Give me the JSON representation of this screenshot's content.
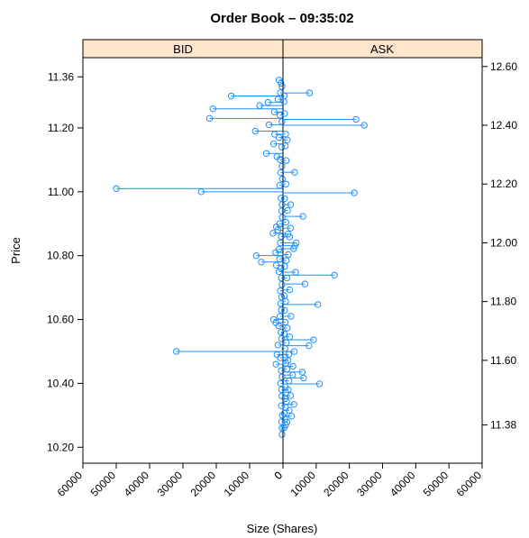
{
  "chart_data": {
    "type": "scatter",
    "style": "stem",
    "title": "Order Book – 09:35:02",
    "xlabel": "Size (Shares)",
    "ylabel": "Price",
    "xlim": [
      0,
      60000
    ],
    "x_ticks": [
      0,
      10000,
      20000,
      30000,
      40000,
      50000,
      60000
    ],
    "bid_ylim": [
      10.15,
      11.42
    ],
    "ask_ylim": [
      11.25,
      12.63
    ],
    "bid_y_ticks": [
      "10.20",
      "10.40",
      "10.60",
      "10.80",
      "11.00",
      "11.20",
      "11.36"
    ],
    "ask_y_ticks": [
      "11.38",
      "11.60",
      "11.80",
      "12.00",
      "12.20",
      "12.40",
      "12.60"
    ],
    "marker_color": "#1e90ff",
    "strip_color": "#ffe5cc",
    "grid": false,
    "panels": [
      {
        "name": "BID",
        "points": [
          {
            "price": 11.35,
            "size": 1200
          },
          {
            "price": 11.34,
            "size": 600
          },
          {
            "price": 11.33,
            "size": 300
          },
          {
            "price": 11.31,
            "size": 800
          },
          {
            "price": 11.3,
            "size": 15500
          },
          {
            "price": 11.29,
            "size": 1500
          },
          {
            "price": 11.28,
            "size": 4500
          },
          {
            "price": 11.27,
            "size": 7000
          },
          {
            "price": 11.26,
            "size": 21000
          },
          {
            "price": 11.25,
            "size": 2600
          },
          {
            "price": 11.24,
            "size": 900
          },
          {
            "price": 11.23,
            "size": 22000
          },
          {
            "price": 11.22,
            "size": 300
          },
          {
            "price": 11.21,
            "size": 4200
          },
          {
            "price": 11.19,
            "size": 8300
          },
          {
            "price": 11.18,
            "size": 2500
          },
          {
            "price": 11.17,
            "size": 1200
          },
          {
            "price": 11.15,
            "size": 2800
          },
          {
            "price": 11.14,
            "size": 400
          },
          {
            "price": 11.12,
            "size": 5000
          },
          {
            "price": 11.11,
            "size": 1800
          },
          {
            "price": 11.1,
            "size": 900
          },
          {
            "price": 11.08,
            "size": 300
          },
          {
            "price": 11.06,
            "size": 700
          },
          {
            "price": 11.04,
            "size": 200
          },
          {
            "price": 11.02,
            "size": 1000
          },
          {
            "price": 11.01,
            "size": 50000
          },
          {
            "price": 11.0,
            "size": 24500
          },
          {
            "price": 10.98,
            "size": 600
          },
          {
            "price": 10.96,
            "size": 300
          },
          {
            "price": 10.94,
            "size": 400
          },
          {
            "price": 10.92,
            "size": 200
          },
          {
            "price": 10.9,
            "size": 1000
          },
          {
            "price": 10.89,
            "size": 2000
          },
          {
            "price": 10.88,
            "size": 1500
          },
          {
            "price": 10.87,
            "size": 3000
          },
          {
            "price": 10.86,
            "size": 500
          },
          {
            "price": 10.84,
            "size": 800
          },
          {
            "price": 10.82,
            "size": 1200
          },
          {
            "price": 10.81,
            "size": 2200
          },
          {
            "price": 10.8,
            "size": 8000
          },
          {
            "price": 10.79,
            "size": 1000
          },
          {
            "price": 10.78,
            "size": 6500
          },
          {
            "price": 10.77,
            "size": 2000
          },
          {
            "price": 10.76,
            "size": 600
          },
          {
            "price": 10.75,
            "size": 1200
          },
          {
            "price": 10.73,
            "size": 500
          },
          {
            "price": 10.71,
            "size": 300
          },
          {
            "price": 10.69,
            "size": 800
          },
          {
            "price": 10.67,
            "size": 400
          },
          {
            "price": 10.65,
            "size": 700
          },
          {
            "price": 10.63,
            "size": 500
          },
          {
            "price": 10.61,
            "size": 900
          },
          {
            "price": 10.6,
            "size": 2800
          },
          {
            "price": 10.59,
            "size": 2100
          },
          {
            "price": 10.58,
            "size": 1300
          },
          {
            "price": 10.56,
            "size": 600
          },
          {
            "price": 10.54,
            "size": 400
          },
          {
            "price": 10.52,
            "size": 1500
          },
          {
            "price": 10.5,
            "size": 32000
          },
          {
            "price": 10.49,
            "size": 1800
          },
          {
            "price": 10.48,
            "size": 800
          },
          {
            "price": 10.46,
            "size": 2100
          },
          {
            "price": 10.44,
            "size": 500
          },
          {
            "price": 10.42,
            "size": 300
          },
          {
            "price": 10.4,
            "size": 700
          },
          {
            "price": 10.38,
            "size": 400
          },
          {
            "price": 10.36,
            "size": 300
          },
          {
            "price": 10.33,
            "size": 500
          },
          {
            "price": 10.3,
            "size": 200
          },
          {
            "price": 10.28,
            "size": 400
          },
          {
            "price": 10.26,
            "size": 300
          },
          {
            "price": 10.24,
            "size": 300
          }
        ]
      },
      {
        "name": "ASK",
        "points": [
          {
            "price": 11.37,
            "size": 300
          },
          {
            "price": 11.38,
            "size": 800
          },
          {
            "price": 11.39,
            "size": 1200
          },
          {
            "price": 11.4,
            "size": 600
          },
          {
            "price": 11.41,
            "size": 2600
          },
          {
            "price": 11.42,
            "size": 400
          },
          {
            "price": 11.43,
            "size": 1900
          },
          {
            "price": 11.44,
            "size": 800
          },
          {
            "price": 11.45,
            "size": 3300
          },
          {
            "price": 11.46,
            "size": 1100
          },
          {
            "price": 11.47,
            "size": 600
          },
          {
            "price": 11.48,
            "size": 2300
          },
          {
            "price": 11.49,
            "size": 900
          },
          {
            "price": 11.5,
            "size": 1600
          },
          {
            "price": 11.51,
            "size": 700
          },
          {
            "price": 11.52,
            "size": 11000
          },
          {
            "price": 11.53,
            "size": 1800
          },
          {
            "price": 11.54,
            "size": 6200
          },
          {
            "price": 11.55,
            "size": 2900
          },
          {
            "price": 11.56,
            "size": 5800
          },
          {
            "price": 11.57,
            "size": 1200
          },
          {
            "price": 11.58,
            "size": 3000
          },
          {
            "price": 11.59,
            "size": 900
          },
          {
            "price": 11.6,
            "size": 1500
          },
          {
            "price": 11.61,
            "size": 700
          },
          {
            "price": 11.62,
            "size": 1700
          },
          {
            "price": 11.63,
            "size": 3400
          },
          {
            "price": 11.64,
            "size": 600
          },
          {
            "price": 11.65,
            "size": 7800
          },
          {
            "price": 11.66,
            "size": 1000
          },
          {
            "price": 11.67,
            "size": 9200
          },
          {
            "price": 11.68,
            "size": 2000
          },
          {
            "price": 11.69,
            "size": 400
          },
          {
            "price": 11.71,
            "size": 1300
          },
          {
            "price": 11.73,
            "size": 700
          },
          {
            "price": 11.75,
            "size": 2400
          },
          {
            "price": 11.77,
            "size": 500
          },
          {
            "price": 11.79,
            "size": 10500
          },
          {
            "price": 11.8,
            "size": 800
          },
          {
            "price": 11.82,
            "size": 400
          },
          {
            "price": 11.84,
            "size": 2000
          },
          {
            "price": 11.86,
            "size": 6600
          },
          {
            "price": 11.88,
            "size": 1200
          },
          {
            "price": 11.89,
            "size": 15500
          },
          {
            "price": 11.9,
            "size": 3800
          },
          {
            "price": 11.92,
            "size": 500
          },
          {
            "price": 11.94,
            "size": 1000
          },
          {
            "price": 11.96,
            "size": 1600
          },
          {
            "price": 11.98,
            "size": 3200
          },
          {
            "price": 11.99,
            "size": 3600
          },
          {
            "price": 12.0,
            "size": 4000
          },
          {
            "price": 12.02,
            "size": 2000
          },
          {
            "price": 12.03,
            "size": 1500
          },
          {
            "price": 12.05,
            "size": 2300
          },
          {
            "price": 12.07,
            "size": 900
          },
          {
            "price": 12.09,
            "size": 6000
          },
          {
            "price": 12.11,
            "size": 1400
          },
          {
            "price": 12.13,
            "size": 2300
          },
          {
            "price": 12.15,
            "size": 500
          },
          {
            "price": 12.17,
            "size": 21500
          },
          {
            "price": 12.2,
            "size": 900
          },
          {
            "price": 12.24,
            "size": 3500
          },
          {
            "price": 12.28,
            "size": 1000
          },
          {
            "price": 12.33,
            "size": 700
          },
          {
            "price": 12.35,
            "size": 1300
          },
          {
            "price": 12.37,
            "size": 800
          },
          {
            "price": 12.4,
            "size": 24500
          },
          {
            "price": 12.42,
            "size": 22000
          },
          {
            "price": 12.44,
            "size": 500
          },
          {
            "price": 12.48,
            "size": 300
          },
          {
            "price": 12.5,
            "size": 400
          },
          {
            "price": 12.51,
            "size": 8000
          }
        ]
      }
    ]
  }
}
